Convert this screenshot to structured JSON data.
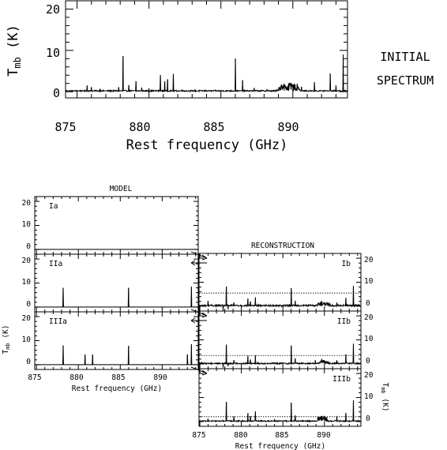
{
  "chart_data": [
    {
      "id": "initial",
      "type": "line",
      "title": "INITIAL SPECTRUM",
      "xlabel": "Rest frequency (GHz)",
      "ylabel": "T_mb (K)",
      "xlim": [
        874.2,
        893.8
      ],
      "ylim": [
        -1.5,
        22
      ],
      "xticks": [
        "875",
        "880",
        "885",
        "890"
      ],
      "yticks": [
        "0",
        "10",
        "20"
      ],
      "baseline": 0.2,
      "noise": 0.15,
      "lines": [
        [
          875.7,
          1.5
        ],
        [
          876.0,
          1.1
        ],
        [
          876.6,
          0.7
        ],
        [
          877.2,
          0.3
        ],
        [
          877.9,
          1.1
        ],
        [
          878.2,
          8.6
        ],
        [
          878.6,
          1.6
        ],
        [
          879.1,
          2.5
        ],
        [
          879.5,
          1.0
        ],
        [
          880.0,
          0.8
        ],
        [
          880.8,
          4.0
        ],
        [
          881.1,
          2.5
        ],
        [
          881.3,
          3.0
        ],
        [
          881.7,
          4.3
        ],
        [
          882.3,
          0.5
        ],
        [
          883.2,
          0.4
        ],
        [
          884.0,
          0.3
        ],
        [
          884.6,
          0.4
        ],
        [
          886.0,
          8.0
        ],
        [
          886.5,
          2.8
        ],
        [
          887.3,
          0.9
        ],
        [
          888.2,
          0.6
        ],
        [
          888.9,
          0.5
        ],
        [
          889.4,
          1.6
        ],
        [
          889.7,
          2.0
        ],
        [
          890.0,
          1.6
        ],
        [
          890.3,
          1.9
        ],
        [
          890.6,
          1.2
        ],
        [
          891.5,
          2.3
        ],
        [
          892.6,
          4.4
        ],
        [
          893.0,
          1.5
        ],
        [
          893.5,
          9.0
        ]
      ],
      "forest": [
        889.0,
        890.5,
        1.8
      ],
      "annotation_lines": [
        "INITIAL",
        "SPECTRUM"
      ]
    },
    {
      "id": "Ia",
      "type": "line",
      "panel_label": "Ia",
      "title": "MODEL",
      "ylabel": "T_mb (K)",
      "xlim": [
        874.8,
        894.3
      ],
      "ylim": [
        -2,
        22
      ],
      "yticks": [
        "0",
        "10",
        "20"
      ],
      "baseline": 0,
      "noise": 0,
      "dotted_level": 0,
      "lines": []
    },
    {
      "id": "IIa",
      "type": "line",
      "panel_label": "IIa",
      "xlim": [
        874.8,
        894.3
      ],
      "ylim": [
        -2,
        22
      ],
      "yticks": [
        "0",
        "10",
        "20"
      ],
      "baseline": 0,
      "noise": 0,
      "dotted_level": 0,
      "lines": [
        [
          878.2,
          8.0
        ],
        [
          886.0,
          8.0
        ],
        [
          893.5,
          8.5
        ]
      ]
    },
    {
      "id": "IIIa",
      "type": "line",
      "panel_label": "IIIa",
      "xlabel": "Rest frequency (GHz)",
      "xlim": [
        874.8,
        894.3
      ],
      "ylim": [
        -2,
        22
      ],
      "xticks": [
        "875",
        "880",
        "885",
        "890"
      ],
      "yticks": [
        "0",
        "10",
        "20"
      ],
      "baseline": 0,
      "noise": 0,
      "dotted_level": 0,
      "lines": [
        [
          878.2,
          8.0
        ],
        [
          880.8,
          4.2
        ],
        [
          881.7,
          4.2
        ],
        [
          886.0,
          7.8
        ],
        [
          893.0,
          4.3
        ],
        [
          893.5,
          8.5
        ]
      ]
    },
    {
      "id": "Ib",
      "type": "line",
      "panel_label": "Ib",
      "title": "RECONSTRUCTION",
      "xlim": [
        874.9,
        894.4
      ],
      "ylim": [
        -2,
        22
      ],
      "yticks": [
        "0",
        "10",
        "20"
      ],
      "baseline": 0.3,
      "noise": 0.35,
      "dotted_level": 5.5,
      "dips": [
        [
          877.8,
          -2.3
        ],
        [
          878.4,
          -1.3
        ]
      ],
      "lines": [
        [
          876.0,
          2.2
        ],
        [
          878.2,
          8.2
        ],
        [
          879.1,
          1.6
        ],
        [
          880.8,
          3.2
        ],
        [
          881.1,
          2.0
        ],
        [
          881.7,
          3.7
        ],
        [
          886.0,
          7.5
        ],
        [
          886.5,
          2.3
        ],
        [
          889.7,
          2.2
        ],
        [
          890.0,
          1.6
        ],
        [
          890.4,
          1.6
        ],
        [
          891.5,
          1.6
        ],
        [
          892.6,
          3.5
        ],
        [
          893.5,
          8.5
        ]
      ],
      "forest": [
        889.2,
        890.6,
        1.4
      ]
    },
    {
      "id": "IIb",
      "type": "line",
      "panel_label": "IIb",
      "xlim": [
        874.9,
        894.4
      ],
      "ylim": [
        -2,
        22
      ],
      "yticks": [
        "0",
        "10",
        "20"
      ],
      "baseline": 0.2,
      "noise": 0.3,
      "dotted_level": 3.5,
      "dips": [
        [
          877.8,
          -1.6
        ],
        [
          878.4,
          -1.0
        ]
      ],
      "lines": [
        [
          878.2,
          8.0
        ],
        [
          879.1,
          1.6
        ],
        [
          880.8,
          3.3
        ],
        [
          881.1,
          1.8
        ],
        [
          881.7,
          3.5
        ],
        [
          886.0,
          7.6
        ],
        [
          886.5,
          2.3
        ],
        [
          888.9,
          1.5
        ],
        [
          889.7,
          2.0
        ],
        [
          890.0,
          1.5
        ],
        [
          891.5,
          1.5
        ],
        [
          892.6,
          4.0
        ],
        [
          893.5,
          8.4
        ]
      ],
      "forest": [
        889.4,
        890.5,
        1.2
      ]
    },
    {
      "id": "IIIb",
      "type": "line",
      "panel_label": "IIIb",
      "xlabel": "Rest frequency (GHz)",
      "ylabel": "T_mb (K)",
      "xlim": [
        874.9,
        894.4
      ],
      "ylim": [
        -2,
        22
      ],
      "xticks": [
        "875",
        "880",
        "885",
        "890"
      ],
      "yticks": [
        "0",
        "10",
        "20"
      ],
      "baseline": 0.2,
      "noise": 0.25,
      "dotted_level": 2.0,
      "lines": [
        [
          876.0,
          1.2
        ],
        [
          878.2,
          8.2
        ],
        [
          879.1,
          2.1
        ],
        [
          880.8,
          3.5
        ],
        [
          881.1,
          2.2
        ],
        [
          881.7,
          4.2
        ],
        [
          884.0,
          1.0
        ],
        [
          886.0,
          7.8
        ],
        [
          886.5,
          2.5
        ],
        [
          889.3,
          1.6
        ],
        [
          889.7,
          2.3
        ],
        [
          890.0,
          1.8
        ],
        [
          890.3,
          1.8
        ],
        [
          891.5,
          2.3
        ],
        [
          892.6,
          3.6
        ],
        [
          893.5,
          8.8
        ]
      ],
      "forest": [
        889.2,
        890.2,
        1.8
      ]
    }
  ]
}
